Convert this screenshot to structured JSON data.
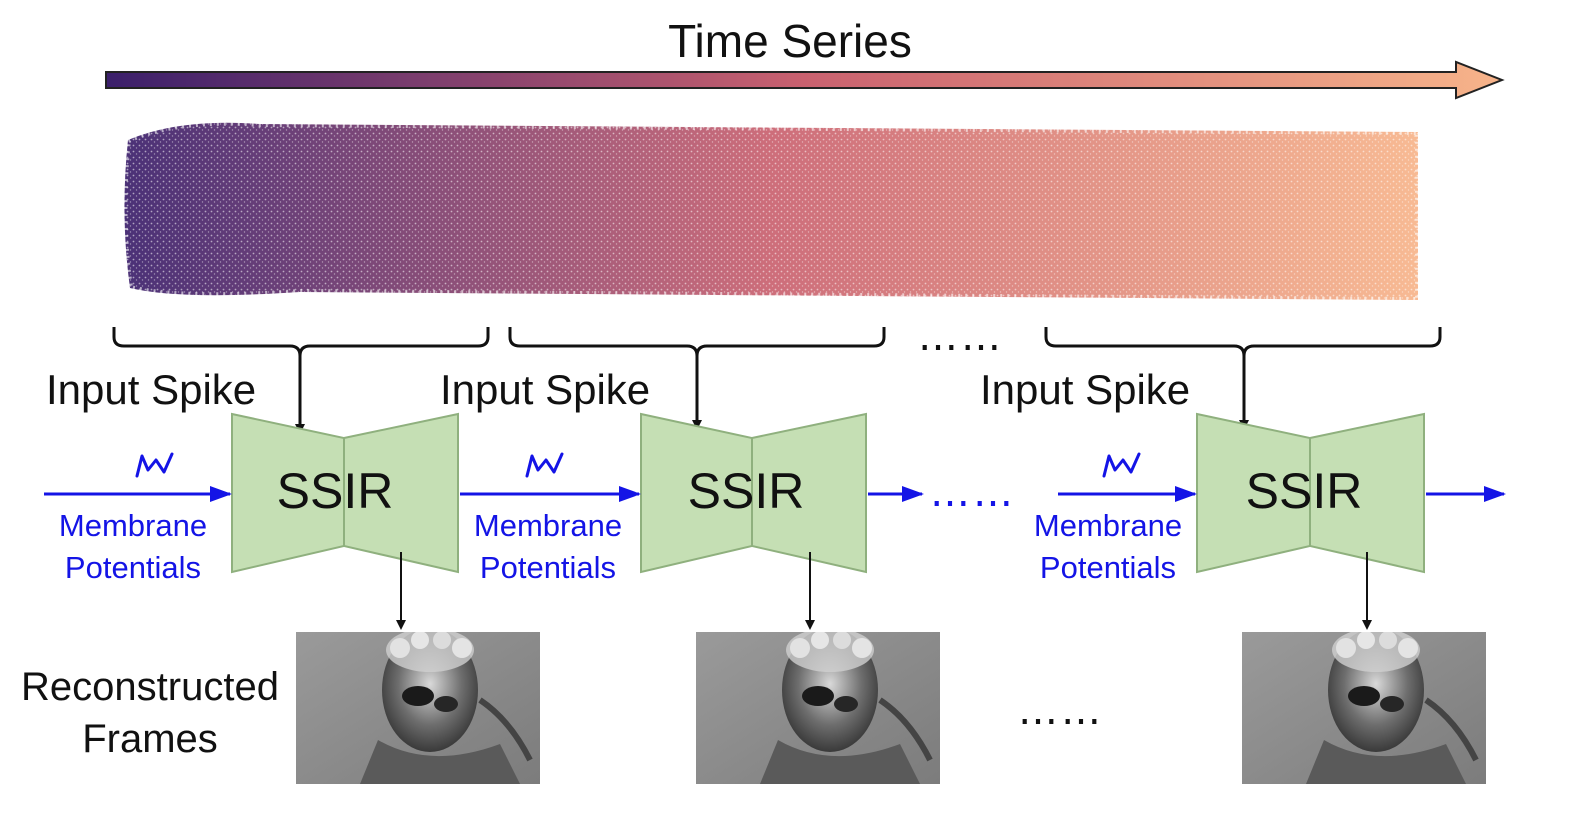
{
  "title": "Time Series",
  "input_label": "Input Spike",
  "module_label": "SSIR",
  "membrane": {
    "line1": "Membrane",
    "line2": "Potentials"
  },
  "reconstructed": {
    "line1": "Reconstructed",
    "line2": "Frames"
  },
  "ellipsis": "……",
  "colors": {
    "gradient_start": "#3b1f6b",
    "gradient_mid": "#c9616f",
    "gradient_end": "#f7b48a",
    "module_fill": "#c5dfb4",
    "module_stroke": "#8fb07e",
    "membrane_blue": "#1414e6",
    "frame_gray": "#8a8a8a"
  },
  "icons": [
    "time-arrow",
    "spike-cloud",
    "bracket",
    "arrow-down",
    "arrow-right",
    "spike-wave-icon",
    "frame-image"
  ]
}
